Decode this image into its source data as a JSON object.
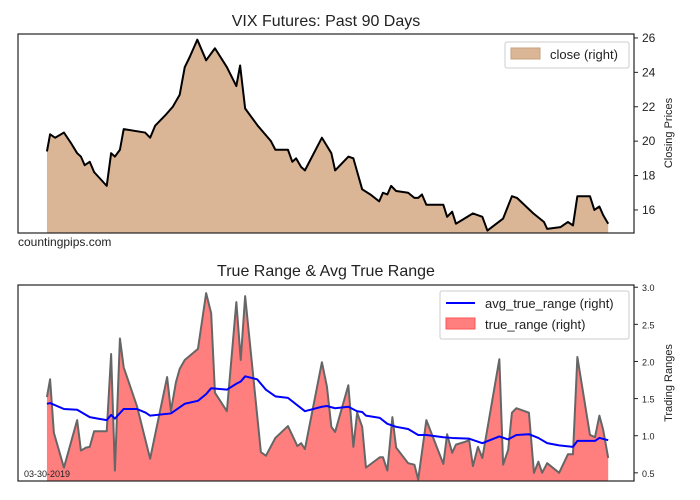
{
  "chart_data": [
    {
      "type": "area",
      "title": "VIX Futures: Past 90 Days",
      "xlabel": "",
      "ylabel": "Closing Prices",
      "y_axis_side": "right",
      "ylim": [
        14.66,
        26.23
      ],
      "xlim": [
        -4.6,
        93.3
      ],
      "yticks": [
        16,
        18,
        20,
        22,
        24,
        26
      ],
      "legend": {
        "placement": "top-right",
        "entries": [
          "close (right)"
        ]
      },
      "annotation": "countingpips.com",
      "colors": {
        "fill": "#dbb696",
        "line": "#000000"
      },
      "series": [
        {
          "name": "close (right)",
          "x": [
            0,
            0.5,
            1.3,
            2.7,
            3.8,
            4.8,
            5.4,
            6.0,
            6.8,
            7.5,
            9.5,
            10.2,
            10.8,
            11.6,
            12.2,
            15.6,
            16.4,
            17.2,
            18.8,
            20.0,
            21.1,
            21.9,
            22.7,
            23.9,
            25.3,
            26.7,
            28.6,
            30.1,
            30.7,
            31.5,
            33.5,
            35.6,
            36.3,
            38.3,
            39.0,
            39.6,
            40.4,
            41.0,
            43.7,
            45.2,
            45.8,
            47.9,
            48.7,
            50.1,
            51.4,
            52.8,
            53.4,
            54.1,
            54.7,
            55.5,
            57.4,
            58.4,
            59.0,
            59.6,
            60.3,
            63.0,
            63.6,
            64.4,
            65.0,
            67.7,
            69.2,
            70.0,
            72.5,
            73.9,
            74.7,
            77.3,
            79.0,
            79.5,
            81.6,
            82.8,
            83.6,
            84.3,
            86.3,
            87.0,
            87.8,
            88.4,
            89.2
          ],
          "values": [
            19.4,
            20.4,
            20.2,
            20.5,
            19.9,
            19.3,
            19.1,
            18.6,
            18.8,
            18.2,
            17.4,
            19.3,
            19.1,
            19.5,
            20.7,
            20.5,
            20.2,
            20.9,
            21.5,
            22.0,
            22.7,
            24.3,
            24.9,
            25.9,
            24.7,
            25.4,
            24.3,
            23.2,
            24.4,
            21.9,
            20.9,
            20.0,
            19.5,
            19.5,
            18.8,
            19.0,
            18.5,
            18.3,
            20.2,
            19.3,
            18.3,
            19.1,
            19.0,
            17.2,
            16.9,
            16.5,
            17.0,
            16.9,
            17.4,
            17.1,
            17.0,
            16.7,
            16.7,
            16.9,
            16.3,
            16.3,
            15.6,
            15.9,
            15.2,
            15.8,
            15.6,
            14.8,
            15.5,
            16.8,
            16.7,
            15.8,
            15.3,
            14.9,
            15.0,
            15.3,
            15.1,
            16.8,
            16.8,
            16.0,
            16.2,
            15.7,
            15.2
          ]
        }
      ]
    },
    {
      "type": "area",
      "title": "True Range & Avg True Range",
      "xlabel": "",
      "ylabel": "Trading Ranges",
      "y_axis_side": "right",
      "ylim": [
        0.39,
        3.03
      ],
      "xlim": [
        -4.6,
        93.3
      ],
      "yticks": [
        "0.5",
        "1.0",
        "1.5",
        "2.0",
        "2.5",
        "3.0"
      ],
      "legend": {
        "placement": "top-right",
        "entries": [
          "avg_true_range (right)",
          "true_range (right)"
        ]
      },
      "annotation": "03-30-2019",
      "colors": {
        "fill": "#ff7f7f",
        "tr_line": "#666666",
        "atr_line": "#0000ff"
      },
      "series": [
        {
          "name": "true_range (right)",
          "x": [
            0,
            0.5,
            1.1,
            2.7,
            4.8,
            5.4,
            6.2,
            6.8,
            7.5,
            9.5,
            10.2,
            10.8,
            11.6,
            12.2,
            14.3,
            16.4,
            19.1,
            19.7,
            20.5,
            21.1,
            21.9,
            24.0,
            25.3,
            26.1,
            26.7,
            28.6,
            30.1,
            30.8,
            31.5,
            34.0,
            34.8,
            36.3,
            38.3,
            39.8,
            40.4,
            41.0,
            43.7,
            44.5,
            45.2,
            45.8,
            47.9,
            48.7,
            49.3,
            50.1,
            50.7,
            52.9,
            53.4,
            54.1,
            54.9,
            55.5,
            57.4,
            58.4,
            59.0,
            60.3,
            63.0,
            63.6,
            64.4,
            65.0,
            66.5,
            67.1,
            67.7,
            68.5,
            69.2,
            71.9,
            72.5,
            73.3,
            73.9,
            74.6,
            76.6,
            77.4,
            78.1,
            78.7,
            79.5,
            81.4,
            82.8,
            83.6,
            84.3,
            86.3,
            87.1,
            87.8,
            88.4,
            89.2
          ],
          "values": [
            1.52,
            1.76,
            1.04,
            0.57,
            1.21,
            0.8,
            0.84,
            0.85,
            1.06,
            1.06,
            2.1,
            0.53,
            2.31,
            1.92,
            1.4,
            0.69,
            1.79,
            1.33,
            1.72,
            1.9,
            2.02,
            2.17,
            2.92,
            2.65,
            1.58,
            1.33,
            2.8,
            2.02,
            2.88,
            0.78,
            0.73,
            0.97,
            1.13,
            0.86,
            0.9,
            0.82,
            1.99,
            1.66,
            1.12,
            1.05,
            1.68,
            0.85,
            1.31,
            1.12,
            0.57,
            0.71,
            0.71,
            0.53,
            1.25,
            0.84,
            0.63,
            0.61,
            0.41,
            1.21,
            0.62,
            1.02,
            0.77,
            0.88,
            0.92,
            0.94,
            0.59,
            0.85,
            0.7,
            2.03,
            0.61,
            0.81,
            1.31,
            1.37,
            1.31,
            0.5,
            0.65,
            0.5,
            0.63,
            0.5,
            0.75,
            0.75,
            2.06,
            1.01,
            0.98,
            1.27,
            1.08,
            0.7
          ]
        },
        {
          "name": "avg_true_range (right)",
          "x": [
            0,
            0.5,
            2.7,
            4.8,
            6.8,
            8.1,
            9.5,
            10.2,
            10.8,
            12.2,
            14.3,
            15.7,
            16.4,
            19.7,
            21.9,
            24.0,
            25.3,
            26.1,
            28.6,
            30.1,
            30.8,
            31.5,
            33.4,
            34.8,
            36.3,
            38.3,
            41.0,
            43.7,
            44.5,
            45.8,
            47.9,
            49.3,
            50.1,
            50.7,
            52.9,
            54.1,
            55.5,
            57.4,
            59.0,
            60.3,
            63.0,
            64.4,
            67.1,
            69.2,
            71.9,
            73.3,
            74.6,
            76.6,
            78.1,
            79.5,
            81.4,
            83.6,
            84.3,
            86.3,
            87.1,
            87.8,
            89.2
          ],
          "values": [
            1.43,
            1.44,
            1.36,
            1.35,
            1.25,
            1.23,
            1.21,
            1.28,
            1.23,
            1.36,
            1.36,
            1.31,
            1.27,
            1.3,
            1.43,
            1.47,
            1.56,
            1.64,
            1.62,
            1.7,
            1.73,
            1.8,
            1.76,
            1.62,
            1.53,
            1.51,
            1.33,
            1.39,
            1.4,
            1.37,
            1.39,
            1.33,
            1.32,
            1.27,
            1.24,
            1.16,
            1.12,
            1.09,
            1.01,
            1.01,
            0.98,
            0.97,
            0.96,
            0.9,
            0.99,
            0.95,
            1.01,
            1.02,
            0.97,
            0.9,
            0.87,
            0.85,
            0.93,
            0.93,
            0.93,
            0.97,
            0.94
          ]
        }
      ]
    }
  ]
}
